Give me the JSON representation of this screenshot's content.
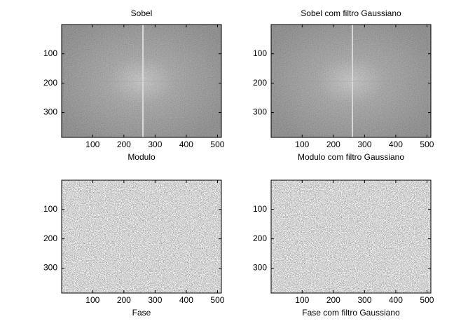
{
  "chart_data": [
    {
      "type": "image",
      "title": "Sobel",
      "xlabel": "Modulo",
      "kind": "modulo",
      "xlim": [
        0.5,
        512.5
      ],
      "ylim": [
        0.5,
        384.5
      ],
      "y_reversed": true,
      "xticks": [
        100,
        200,
        300,
        400,
        500
      ],
      "yticks": [
        100,
        200,
        300
      ]
    },
    {
      "type": "image",
      "title": "Sobel com filtro Gaussiano",
      "xlabel": "Modulo com filtro Gaussiano",
      "kind": "modulo",
      "xlim": [
        0.5,
        512.5
      ],
      "ylim": [
        0.5,
        384.5
      ],
      "y_reversed": true,
      "xticks": [
        100,
        200,
        300,
        400,
        500
      ],
      "yticks": [
        100,
        200,
        300
      ]
    },
    {
      "type": "image",
      "xlabel": "Fase",
      "kind": "fase",
      "xlim": [
        0.5,
        512.5
      ],
      "ylim": [
        0.5,
        384.5
      ],
      "y_reversed": true,
      "xticks": [
        100,
        200,
        300,
        400,
        500
      ],
      "yticks": [
        100,
        200,
        300
      ]
    },
    {
      "type": "image",
      "xlabel": "Fase com filtro Gaussiano",
      "kind": "fase",
      "xlim": [
        0.5,
        512.5
      ],
      "ylim": [
        0.5,
        384.5
      ],
      "y_reversed": true,
      "xticks": [
        100,
        200,
        300,
        400,
        500
      ],
      "yticks": [
        100,
        200,
        300
      ]
    }
  ]
}
